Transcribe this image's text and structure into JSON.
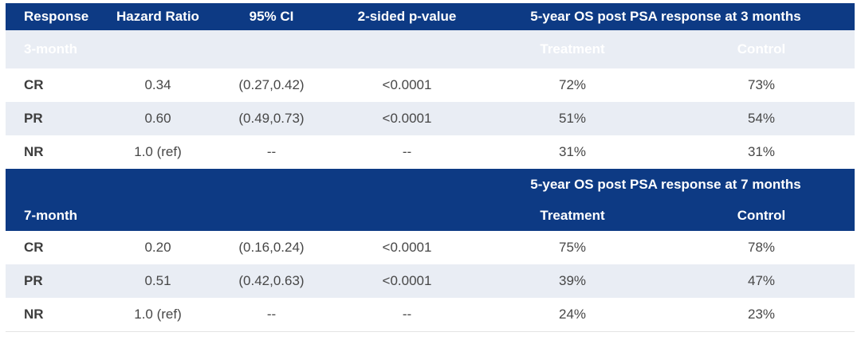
{
  "colors": {
    "header_blue": "#0d3a84",
    "band_light": "#e9edf4",
    "body_text": "#474747",
    "header_text": "#ffffff"
  },
  "table": {
    "columns": {
      "response": "Response",
      "hazard_ratio": "Hazard Ratio",
      "ci": "95% CI",
      "p_value": "2-sided p-value"
    },
    "sections": [
      {
        "label": "3-month",
        "os_header": "5-year OS post PSA response at 3 months",
        "treatment_label": "Treatment",
        "control_label": "Control",
        "rows": [
          {
            "response": "CR",
            "hr": "0.34",
            "ci": "(0.27,0.42)",
            "p": "<0.0001",
            "treatment": "72%",
            "control": "73%"
          },
          {
            "response": "PR",
            "hr": "0.60",
            "ci": "(0.49,0.73)",
            "p": "<0.0001",
            "treatment": "51%",
            "control": "54%"
          },
          {
            "response": "NR",
            "hr": "1.0 (ref)",
            "ci": "--",
            "p": "--",
            "treatment": "31%",
            "control": "31%"
          }
        ]
      },
      {
        "label": "7-month",
        "os_header": "5-year OS post PSA response at 7 months",
        "treatment_label": "Treatment",
        "control_label": "Control",
        "rows": [
          {
            "response": "CR",
            "hr": "0.20",
            "ci": "(0.16,0.24)",
            "p": "<0.0001",
            "treatment": "75%",
            "control": "78%"
          },
          {
            "response": "PR",
            "hr": "0.51",
            "ci": "(0.42,0.63)",
            "p": "<0.0001",
            "treatment": "39%",
            "control": "47%"
          },
          {
            "response": "NR",
            "hr": "1.0 (ref)",
            "ci": "--",
            "p": "--",
            "treatment": "24%",
            "control": "23%"
          }
        ]
      }
    ]
  }
}
